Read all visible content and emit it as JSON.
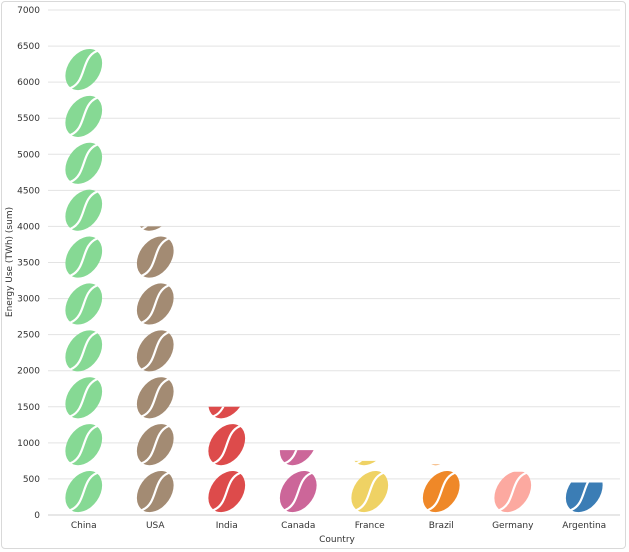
{
  "chart_data": {
    "type": "bar",
    "bar_style": "pictograph-coffee-bean",
    "categories": [
      "China",
      "USA",
      "India",
      "Canada",
      "France",
      "Brazil",
      "Germany",
      "Argentina"
    ],
    "values": [
      6500,
      4000,
      1500,
      900,
      750,
      700,
      600,
      450
    ],
    "colors": [
      "#86d994",
      "#a38b73",
      "#dd4b4b",
      "#cc6699",
      "#efd264",
      "#ef8828",
      "#fca9a0",
      "#3b7db5"
    ],
    "xlabel": "Country",
    "ylabel": "Energy Use (TWh) (sum)",
    "ylim": [
      0,
      7000
    ],
    "yticks": [
      0,
      500,
      1000,
      1500,
      2000,
      2500,
      3000,
      3500,
      4000,
      4500,
      5000,
      5500,
      6000,
      6500,
      7000
    ],
    "grid": true,
    "unit_per_icon": 650
  }
}
